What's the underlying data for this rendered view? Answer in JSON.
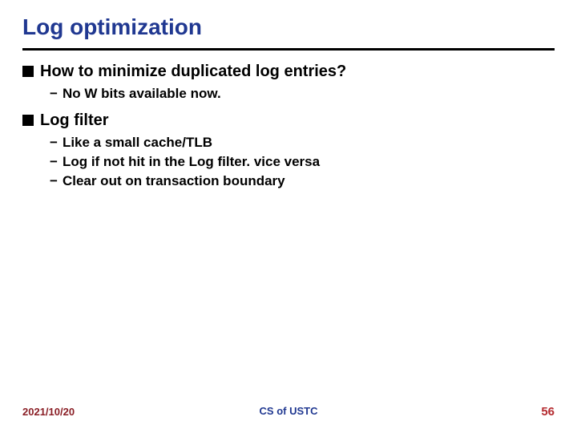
{
  "title": "Log optimization",
  "colors": {
    "title": "#203891",
    "rule": "#000000",
    "text": "#000000",
    "footer_date": "#8a1f26",
    "footer_center": "#203891",
    "footer_page": "#b42a2f",
    "background": "#ffffff"
  },
  "bullets": [
    {
      "text": "How to minimize duplicated log entries?",
      "sub": [
        "No W bits available now."
      ]
    },
    {
      "text": "Log filter",
      "sub": [
        "Like a small cache/TLB",
        "Log if not hit in the Log filter. vice versa",
        "Clear out on transaction boundary"
      ]
    }
  ],
  "footer": {
    "date": "2021/10/20",
    "center": "CS of USTC",
    "page": "56"
  },
  "typography": {
    "title_fontsize": 28,
    "l1_fontsize": 20,
    "l2_fontsize": 17,
    "footer_fontsize": 13
  }
}
